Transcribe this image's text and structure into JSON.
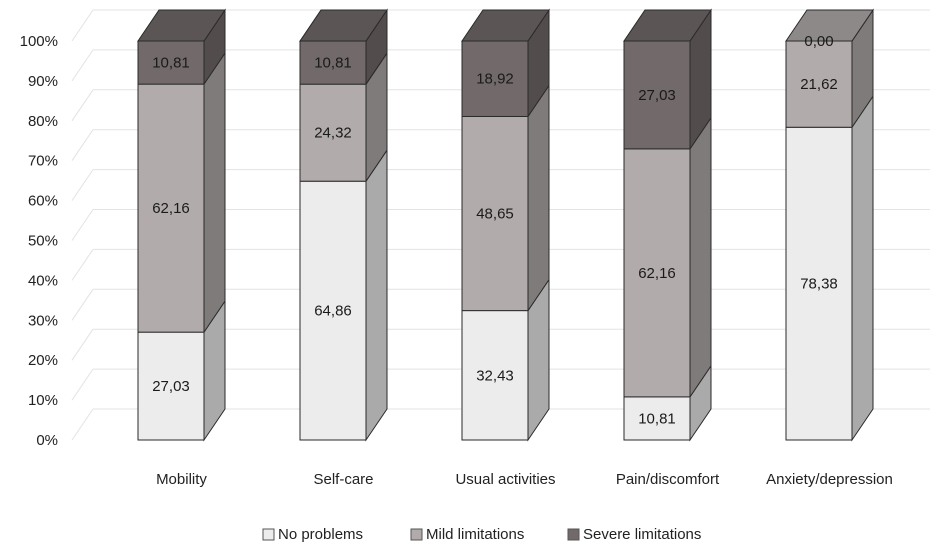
{
  "chart_data": {
    "type": "bar",
    "stacked": true,
    "three_d": true,
    "categories": [
      "Mobility",
      "Self-care",
      "Usual activities",
      "Pain/discomfort",
      "Anxiety/depression"
    ],
    "series": [
      {
        "name": "No problems",
        "values": [
          27.03,
          64.86,
          32.43,
          10.81,
          78.38
        ],
        "labels": [
          "27,03",
          "64,86",
          "32,43",
          "10,81",
          "78,38"
        ],
        "color": "#ececec"
      },
      {
        "name": "Mild limitations",
        "values": [
          62.16,
          24.32,
          48.65,
          62.16,
          21.62
        ],
        "labels": [
          "62,16",
          "24,32",
          "48,65",
          "62,16",
          "21,62"
        ],
        "color": "#b2abab"
      },
      {
        "name": "Severe limitations",
        "values": [
          10.81,
          10.81,
          18.92,
          27.03,
          0.0
        ],
        "labels": [
          "10,81",
          "10,81",
          "18,92",
          "27,03",
          "0,00"
        ],
        "color": "#726a6a"
      }
    ],
    "yticks": [
      "0%",
      "10%",
      "20%",
      "30%",
      "40%",
      "50%",
      "60%",
      "70%",
      "80%",
      "90%",
      "100%"
    ],
    "ylim": [
      0,
      100
    ],
    "grid": true,
    "legend": "bottom"
  }
}
